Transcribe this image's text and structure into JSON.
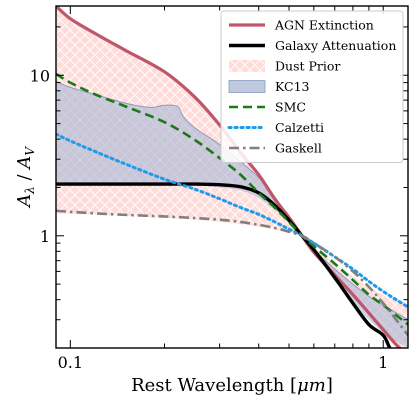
{
  "chart_data": {
    "type": "line",
    "xlabel": "Rest Wavelength [μm]",
    "ylabel": "A_λ / A_V",
    "xlabel_prefix": "Rest Wavelength [",
    "xlabel_unit": "μm",
    "xlabel_suffix": "]",
    "ylabel_a": "A",
    "ylabel_a_sub": "λ",
    "ylabel_sep": " / ",
    "ylabel_v": "A",
    "ylabel_v_sub": "V",
    "x_scale": "log",
    "y_scale": "log",
    "xlim": [
      0.09,
      1.2
    ],
    "ylim": [
      0.2,
      27
    ],
    "xticks": [
      {
        "value": 0.1,
        "label": "0.1"
      },
      {
        "value": 1,
        "label": "1"
      }
    ],
    "yticks": [
      {
        "value": 1,
        "label": "1"
      },
      {
        "value": 10,
        "label": "10"
      }
    ],
    "legend_position": "top-right",
    "grid": false,
    "series": [
      {
        "name": "AGN Extinction",
        "kind": "line",
        "color": "#c0566a",
        "points": [
          [
            0.09,
            27
          ],
          [
            0.1,
            22.5
          ],
          [
            0.12,
            18.2
          ],
          [
            0.15,
            14.3
          ],
          [
            0.2,
            10.5
          ],
          [
            0.25,
            7.3
          ],
          [
            0.3,
            4.9
          ],
          [
            0.35,
            3.3
          ],
          [
            0.4,
            2.4
          ],
          [
            0.45,
            1.7
          ],
          [
            0.5,
            1.3
          ],
          [
            0.55,
            1.0
          ],
          [
            0.6,
            0.79
          ],
          [
            0.7,
            0.57
          ],
          [
            0.8,
            0.43
          ],
          [
            0.9,
            0.33
          ],
          [
            1.0,
            0.26
          ],
          [
            1.1,
            0.21
          ],
          [
            1.2,
            0.18
          ]
        ]
      },
      {
        "name": "Galaxy Attenuation",
        "kind": "line",
        "color": "#000000",
        "points": [
          [
            0.09,
            2.1
          ],
          [
            0.15,
            2.1
          ],
          [
            0.2,
            2.1
          ],
          [
            0.25,
            2.1
          ],
          [
            0.3,
            2.08
          ],
          [
            0.35,
            2.02
          ],
          [
            0.4,
            1.85
          ],
          [
            0.45,
            1.55
          ],
          [
            0.5,
            1.25
          ],
          [
            0.55,
            1.0
          ],
          [
            0.6,
            0.82
          ],
          [
            0.7,
            0.55
          ],
          [
            0.8,
            0.38
          ],
          [
            0.9,
            0.28
          ],
          [
            1.0,
            0.24
          ],
          [
            1.05,
            0.2
          ],
          [
            1.1,
            0.18
          ]
        ]
      },
      {
        "name": "Dust Prior",
        "kind": "band",
        "color": "#ffd0ce",
        "upper": [
          [
            0.09,
            27
          ],
          [
            0.1,
            22.5
          ],
          [
            0.12,
            18.2
          ],
          [
            0.15,
            14.3
          ],
          [
            0.2,
            10.5
          ],
          [
            0.25,
            7.3
          ],
          [
            0.3,
            4.9
          ],
          [
            0.35,
            3.3
          ],
          [
            0.4,
            2.4
          ],
          [
            0.45,
            1.7
          ],
          [
            0.5,
            1.3
          ],
          [
            0.55,
            1.0
          ],
          [
            0.6,
            0.85
          ],
          [
            0.7,
            0.67
          ],
          [
            0.8,
            0.56
          ],
          [
            0.9,
            0.48
          ],
          [
            1.0,
            0.43
          ],
          [
            1.1,
            0.4
          ],
          [
            1.2,
            0.38
          ]
        ],
        "lower": [
          [
            0.09,
            1.38
          ],
          [
            0.15,
            1.33
          ],
          [
            0.2,
            1.29
          ],
          [
            0.25,
            1.26
          ],
          [
            0.3,
            1.22
          ],
          [
            0.35,
            1.18
          ],
          [
            0.4,
            1.14
          ],
          [
            0.45,
            1.09
          ],
          [
            0.5,
            1.04
          ],
          [
            0.55,
            1.0
          ],
          [
            0.6,
            0.79
          ],
          [
            0.7,
            0.57
          ],
          [
            0.8,
            0.43
          ],
          [
            0.9,
            0.33
          ],
          [
            1.0,
            0.26
          ],
          [
            1.1,
            0.21
          ],
          [
            1.2,
            0.18
          ]
        ]
      },
      {
        "name": "KC13",
        "kind": "band",
        "color": "#a9b7d6",
        "upper": [
          [
            0.09,
            9.2
          ],
          [
            0.1,
            8.4
          ],
          [
            0.12,
            7.6
          ],
          [
            0.15,
            6.7
          ],
          [
            0.18,
            6.3
          ],
          [
            0.2,
            6.5
          ],
          [
            0.22,
            6.4
          ],
          [
            0.23,
            5.5
          ],
          [
            0.25,
            4.7
          ],
          [
            0.3,
            3.7
          ],
          [
            0.35,
            2.9
          ],
          [
            0.4,
            2.3
          ],
          [
            0.45,
            1.75
          ],
          [
            0.5,
            1.3
          ],
          [
            0.55,
            1.0
          ],
          [
            0.6,
            0.82
          ],
          [
            0.7,
            0.62
          ],
          [
            0.8,
            0.5
          ],
          [
            0.9,
            0.42
          ],
          [
            1.0,
            0.37
          ],
          [
            1.2,
            0.3
          ]
        ],
        "lower": [
          [
            0.09,
            2.05
          ],
          [
            0.15,
            2.05
          ],
          [
            0.2,
            2.05
          ],
          [
            0.25,
            2.06
          ],
          [
            0.3,
            2.0
          ],
          [
            0.35,
            1.92
          ],
          [
            0.4,
            1.72
          ],
          [
            0.45,
            1.45
          ],
          [
            0.5,
            1.2
          ],
          [
            0.55,
            1.0
          ],
          [
            0.6,
            0.79
          ],
          [
            0.7,
            0.52
          ],
          [
            0.8,
            0.38
          ],
          [
            0.9,
            0.3
          ],
          [
            1.0,
            0.25
          ],
          [
            1.1,
            0.22
          ],
          [
            1.2,
            0.2
          ]
        ]
      },
      {
        "name": "SMC",
        "kind": "line",
        "dash": "dashed",
        "color": "#1a7a1a",
        "points": [
          [
            0.09,
            10.2
          ],
          [
            0.1,
            9.0
          ],
          [
            0.12,
            7.6
          ],
          [
            0.15,
            6.4
          ],
          [
            0.2,
            5.1
          ],
          [
            0.25,
            3.95
          ],
          [
            0.3,
            3.05
          ],
          [
            0.35,
            2.4
          ],
          [
            0.4,
            1.85
          ],
          [
            0.45,
            1.5
          ],
          [
            0.5,
            1.22
          ],
          [
            0.55,
            1.0
          ],
          [
            0.6,
            0.86
          ],
          [
            0.7,
            0.67
          ],
          [
            0.8,
            0.53
          ],
          [
            0.9,
            0.43
          ],
          [
            1.0,
            0.37
          ],
          [
            1.1,
            0.32
          ],
          [
            1.2,
            0.28
          ]
        ]
      },
      {
        "name": "Calzetti",
        "kind": "line",
        "dash": "dotted",
        "color": "#1e9bea",
        "points": [
          [
            0.09,
            4.3
          ],
          [
            0.1,
            3.9
          ],
          [
            0.12,
            3.35
          ],
          [
            0.15,
            2.8
          ],
          [
            0.2,
            2.25
          ],
          [
            0.25,
            1.95
          ],
          [
            0.3,
            1.7
          ],
          [
            0.35,
            1.5
          ],
          [
            0.4,
            1.36
          ],
          [
            0.45,
            1.22
          ],
          [
            0.5,
            1.1
          ],
          [
            0.55,
            1.0
          ],
          [
            0.6,
            0.9
          ],
          [
            0.7,
            0.74
          ],
          [
            0.8,
            0.62
          ],
          [
            0.9,
            0.52
          ],
          [
            1.0,
            0.45
          ],
          [
            1.1,
            0.4
          ],
          [
            1.2,
            0.36
          ]
        ]
      },
      {
        "name": "Gaskell",
        "kind": "line",
        "dash": "dashdot",
        "color": "#808080",
        "points": [
          [
            0.09,
            1.43
          ],
          [
            0.12,
            1.38
          ],
          [
            0.15,
            1.35
          ],
          [
            0.2,
            1.32
          ],
          [
            0.25,
            1.29
          ],
          [
            0.3,
            1.26
          ],
          [
            0.35,
            1.22
          ],
          [
            0.4,
            1.17
          ],
          [
            0.45,
            1.12
          ],
          [
            0.5,
            1.06
          ],
          [
            0.55,
            1.0
          ],
          [
            0.6,
            0.9
          ],
          [
            0.7,
            0.74
          ],
          [
            0.8,
            0.6
          ],
          [
            0.9,
            0.48
          ],
          [
            1.0,
            0.38
          ],
          [
            1.1,
            0.3
          ],
          [
            1.2,
            0.24
          ]
        ]
      }
    ]
  }
}
